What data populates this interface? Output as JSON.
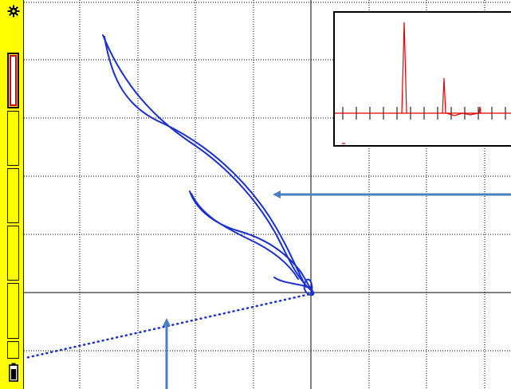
{
  "toolbar": {
    "icons": [
      "gear-icon",
      "battery-icon"
    ],
    "accent_color": "#ffff00",
    "active_button_color": "#e00000",
    "buttons": [
      {
        "id": "slot-1",
        "active": true
      },
      {
        "id": "slot-2",
        "active": false
      },
      {
        "id": "slot-3",
        "active": false
      },
      {
        "id": "slot-4",
        "active": false
      },
      {
        "id": "slot-5",
        "active": false
      },
      {
        "id": "slot-6",
        "active": false
      }
    ]
  },
  "display": {
    "grid": "dotted",
    "trace_color": "#1a2fd0",
    "arrow_color": "#4a7fc0",
    "spectrum_color": "#e00000",
    "arrows": [
      "right-pointing-arrow",
      "up-pointing-arrow"
    ]
  }
}
